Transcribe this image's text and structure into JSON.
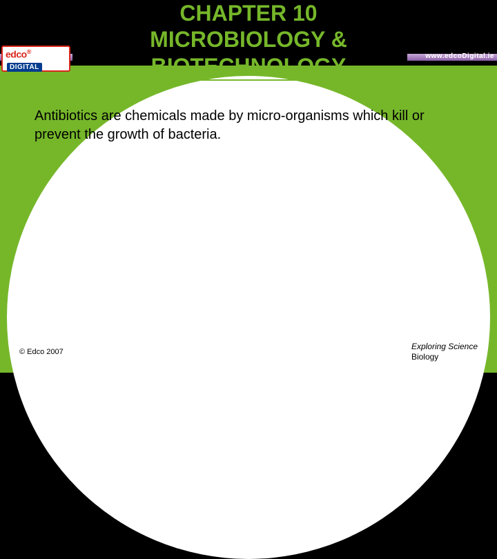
{
  "title_line1": "CHAPTER 10",
  "title_line2": "MICROBIOLOGY &",
  "title_line3": "BIOTECHNOLOGY",
  "logo": {
    "brand": "edco",
    "sub": "DIGITAL",
    "url": "www.edcoDigital.ie"
  },
  "bullet": "Antibiotics are chemicals made by micro-organisms which kill or prevent the growth of bacteria.",
  "footer_left": "© Edco 2007",
  "footer_right_line1": "Exploring Science",
  "footer_right_line2": "Biology",
  "colors": {
    "green": "#76b72a",
    "black": "#000000",
    "white": "#ffffff",
    "purple_light": "#c9a8d8",
    "purple_dark": "#8b5fa8",
    "logo_red": "#d9261c",
    "logo_blue": "#003b8e"
  }
}
